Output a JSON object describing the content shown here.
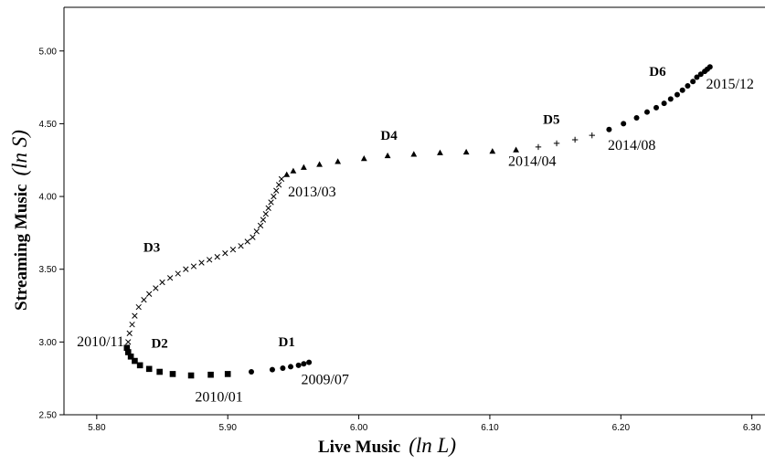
{
  "chart_data": {
    "type": "scatter",
    "xlabel": "Live Music",
    "xlabel_math": "(ln L)",
    "ylabel": "Streaming Music",
    "ylabel_math": "(ln S)",
    "xlim": [
      5.775,
      6.31
    ],
    "ylim": [
      2.5,
      5.3
    ],
    "x_ticks": [
      5.8,
      5.9,
      6.0,
      6.1,
      6.2,
      6.3
    ],
    "x_tick_labels": [
      "5.80",
      "5.90",
      "6.00",
      "6.10",
      "6.20",
      "6.30"
    ],
    "y_ticks": [
      2.5,
      3.0,
      3.5,
      4.0,
      4.5,
      5.0
    ],
    "y_tick_labels": [
      "2.50",
      "3.00",
      "3.50",
      "4.00",
      "4.50",
      "5.00"
    ],
    "grid": false,
    "series": [
      {
        "name": "D1",
        "marker": "circle",
        "points": [
          [
            5.962,
            2.86
          ],
          [
            5.958,
            2.85
          ],
          [
            5.954,
            2.84
          ],
          [
            5.948,
            2.83
          ],
          [
            5.942,
            2.82
          ],
          [
            5.934,
            2.81
          ],
          [
            5.918,
            2.795
          ]
        ]
      },
      {
        "name": "D2",
        "marker": "square",
        "points": [
          [
            5.9,
            2.78
          ],
          [
            5.887,
            2.775
          ],
          [
            5.872,
            2.77
          ],
          [
            5.858,
            2.78
          ],
          [
            5.848,
            2.795
          ],
          [
            5.84,
            2.815
          ],
          [
            5.833,
            2.84
          ],
          [
            5.829,
            2.87
          ],
          [
            5.826,
            2.9
          ],
          [
            5.824,
            2.93
          ],
          [
            5.823,
            2.96
          ]
        ]
      },
      {
        "name": "D3",
        "marker": "x",
        "points": [
          [
            5.824,
            3.0
          ],
          [
            5.825,
            3.06
          ],
          [
            5.827,
            3.12
          ],
          [
            5.829,
            3.18
          ],
          [
            5.832,
            3.24
          ],
          [
            5.836,
            3.29
          ],
          [
            5.84,
            3.33
          ],
          [
            5.845,
            3.37
          ],
          [
            5.85,
            3.41
          ],
          [
            5.856,
            3.44
          ],
          [
            5.862,
            3.47
          ],
          [
            5.868,
            3.5
          ],
          [
            5.874,
            3.52
          ],
          [
            5.88,
            3.545
          ],
          [
            5.886,
            3.565
          ],
          [
            5.892,
            3.585
          ],
          [
            5.898,
            3.61
          ],
          [
            5.904,
            3.635
          ],
          [
            5.91,
            3.66
          ],
          [
            5.915,
            3.69
          ],
          [
            5.919,
            3.72
          ],
          [
            5.922,
            3.76
          ],
          [
            5.925,
            3.8
          ],
          [
            5.927,
            3.84
          ],
          [
            5.929,
            3.88
          ],
          [
            5.931,
            3.92
          ],
          [
            5.933,
            3.96
          ],
          [
            5.935,
            4.0
          ],
          [
            5.937,
            4.04
          ],
          [
            5.939,
            4.08
          ],
          [
            5.941,
            4.12
          ]
        ]
      },
      {
        "name": "D4",
        "marker": "triangle",
        "points": [
          [
            5.945,
            4.15
          ],
          [
            5.95,
            4.175
          ],
          [
            5.958,
            4.2
          ],
          [
            5.97,
            4.22
          ],
          [
            5.984,
            4.24
          ],
          [
            6.004,
            4.26
          ],
          [
            6.022,
            4.28
          ],
          [
            6.042,
            4.29
          ],
          [
            6.062,
            4.3
          ],
          [
            6.082,
            4.305
          ],
          [
            6.102,
            4.31
          ],
          [
            6.12,
            4.32
          ]
        ]
      },
      {
        "name": "D5",
        "marker": "plus",
        "points": [
          [
            6.137,
            4.34
          ],
          [
            6.151,
            4.365
          ],
          [
            6.165,
            4.39
          ],
          [
            6.178,
            4.42
          ]
        ]
      },
      {
        "name": "D6",
        "marker": "circle",
        "points": [
          [
            6.191,
            4.46
          ],
          [
            6.202,
            4.5
          ],
          [
            6.212,
            4.54
          ],
          [
            6.22,
            4.58
          ],
          [
            6.227,
            4.61
          ],
          [
            6.233,
            4.64
          ],
          [
            6.238,
            4.67
          ],
          [
            6.243,
            4.7
          ],
          [
            6.247,
            4.73
          ],
          [
            6.251,
            4.76
          ],
          [
            6.255,
            4.79
          ],
          [
            6.258,
            4.82
          ],
          [
            6.261,
            4.84
          ],
          [
            6.264,
            4.86
          ],
          [
            6.266,
            4.875
          ],
          [
            6.268,
            4.89
          ]
        ]
      }
    ],
    "annotations": [
      {
        "text": "D1",
        "kind": "segment",
        "x": 5.945,
        "y": 2.97,
        "anchor": "middle"
      },
      {
        "text": "D2",
        "kind": "segment",
        "x": 5.848,
        "y": 2.96,
        "anchor": "middle"
      },
      {
        "text": "D3",
        "kind": "segment",
        "x": 5.842,
        "y": 3.62,
        "anchor": "middle"
      },
      {
        "text": "D4",
        "kind": "segment",
        "x": 6.023,
        "y": 4.39,
        "anchor": "middle"
      },
      {
        "text": "D5",
        "kind": "segment",
        "x": 6.147,
        "y": 4.5,
        "anchor": "middle"
      },
      {
        "text": "D6",
        "kind": "segment",
        "x": 6.228,
        "y": 4.83,
        "anchor": "middle"
      },
      {
        "text": "2009/07",
        "kind": "date",
        "x": 5.956,
        "y": 2.71,
        "anchor": "start"
      },
      {
        "text": "2010/01",
        "kind": "date",
        "x": 5.875,
        "y": 2.59,
        "anchor": "start"
      },
      {
        "text": "2010/11",
        "kind": "date",
        "x": 5.821,
        "y": 2.97,
        "anchor": "end"
      },
      {
        "text": "2013/03",
        "kind": "date",
        "x": 5.946,
        "y": 4.0,
        "anchor": "start"
      },
      {
        "text": "2014/04",
        "kind": "date",
        "x": 6.114,
        "y": 4.21,
        "anchor": "start"
      },
      {
        "text": "2014/08",
        "kind": "date",
        "x": 6.19,
        "y": 4.32,
        "anchor": "start"
      },
      {
        "text": "2015/12",
        "kind": "date",
        "x": 6.265,
        "y": 4.74,
        "anchor": "start"
      }
    ]
  }
}
